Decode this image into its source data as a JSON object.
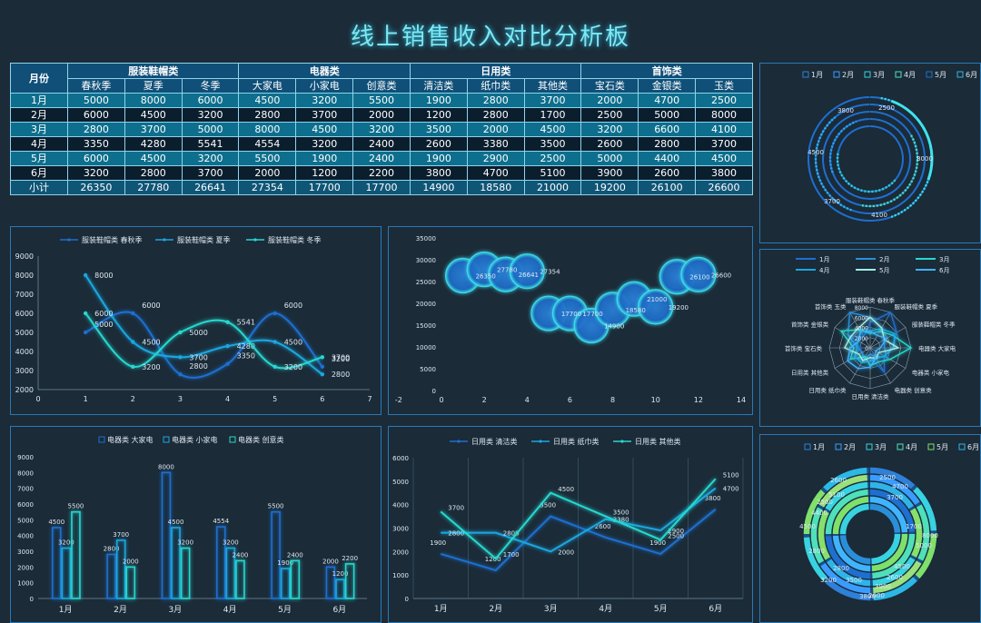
{
  "page": {
    "title": "线上销售收入对比分析板"
  },
  "table": {
    "month_header": "月份",
    "groups": [
      "服装鞋帽类",
      "电器类",
      "日用类",
      "首饰类"
    ],
    "columns": [
      "春秋季",
      "夏季",
      "冬季",
      "大家电",
      "小家电",
      "创意类",
      "清洁类",
      "纸巾类",
      "其他类",
      "宝石类",
      "金银类",
      "玉类"
    ],
    "rows": [
      {
        "month": "1月",
        "values": [
          5000,
          8000,
          6000,
          4500,
          3200,
          5500,
          1900,
          2800,
          3700,
          2000,
          4700,
          2500
        ]
      },
      {
        "month": "2月",
        "values": [
          6000,
          4500,
          3200,
          2800,
          3700,
          2000,
          1200,
          2800,
          1700,
          2500,
          5000,
          8000
        ]
      },
      {
        "month": "3月",
        "values": [
          2800,
          3700,
          5000,
          8000,
          4500,
          3200,
          3500,
          2000,
          4500,
          3200,
          6600,
          4100
        ]
      },
      {
        "month": "4月",
        "values": [
          3350,
          4280,
          5541,
          4554,
          3200,
          2400,
          2600,
          3380,
          3500,
          2600,
          2800,
          3700
        ]
      },
      {
        "month": "5月",
        "values": [
          6000,
          4500,
          3200,
          5500,
          1900,
          2400,
          1900,
          2900,
          2500,
          5000,
          4400,
          4500
        ]
      },
      {
        "month": "6月",
        "values": [
          3200,
          2800,
          3700,
          2000,
          1200,
          2200,
          3800,
          4700,
          5100,
          3900,
          2600,
          3800
        ]
      }
    ],
    "subtotal": {
      "label": "小计",
      "values": [
        26350,
        27780,
        26641,
        27354,
        17700,
        17700,
        14900,
        18580,
        21000,
        19200,
        26100,
        26600
      ]
    }
  },
  "chart_data": [
    {
      "id": "clothing-line",
      "type": "line",
      "series": [
        {
          "name": "服装鞋帽类 春秋季",
          "x": [
            1,
            2,
            3,
            4,
            5,
            6
          ],
          "values": [
            5000,
            6000,
            2800,
            3350,
            6000,
            3200
          ]
        },
        {
          "name": "服装鞋帽类 夏季",
          "x": [
            1,
            2,
            3,
            4,
            5,
            6
          ],
          "values": [
            8000,
            4500,
            3700,
            4280,
            4500,
            2800
          ]
        },
        {
          "name": "服装鞋帽类 冬季",
          "x": [
            1,
            2,
            3,
            4,
            5,
            6
          ],
          "values": [
            6000,
            3200,
            5000,
            5541,
            3200,
            3700
          ]
        }
      ],
      "xlim": [
        0,
        7
      ],
      "xticks": [
        0,
        1,
        2,
        3,
        4,
        5,
        6,
        7
      ],
      "ylim": [
        2000,
        9000
      ],
      "yticks": [
        2000,
        3000,
        4000,
        5000,
        6000,
        7000,
        8000,
        9000
      ],
      "legend": "top"
    },
    {
      "id": "subtotal-bubble",
      "type": "scatter",
      "points": [
        {
          "x": 1,
          "y": 26350
        },
        {
          "x": 2,
          "y": 27780
        },
        {
          "x": 3,
          "y": 26641
        },
        {
          "x": 4,
          "y": 27354
        },
        {
          "x": 5,
          "y": 17700
        },
        {
          "x": 6,
          "y": 17700
        },
        {
          "x": 7,
          "y": 14900
        },
        {
          "x": 8,
          "y": 18580
        },
        {
          "x": 9,
          "y": 21000
        },
        {
          "x": 10,
          "y": 19200
        },
        {
          "x": 11,
          "y": 26100
        },
        {
          "x": 12,
          "y": 26600
        }
      ],
      "xlim": [
        -2,
        14
      ],
      "xticks": [
        -2,
        0,
        2,
        4,
        6,
        8,
        10,
        12,
        14
      ],
      "ylim": [
        0,
        35000
      ],
      "yticks": [
        0,
        5000,
        10000,
        15000,
        20000,
        25000,
        30000,
        35000
      ]
    },
    {
      "id": "appliance-bar",
      "type": "bar",
      "categories": [
        "1月",
        "2月",
        "3月",
        "4月",
        "5月",
        "6月"
      ],
      "series": [
        {
          "name": "电器类 大家电",
          "values": [
            4500,
            2800,
            8000,
            4554,
            5500,
            2000
          ]
        },
        {
          "name": "电器类 小家电",
          "values": [
            3200,
            3700,
            4500,
            3200,
            1900,
            1200
          ]
        },
        {
          "name": "电器类 创意类",
          "values": [
            5500,
            2000,
            3200,
            2400,
            2400,
            2200
          ]
        }
      ],
      "ylim": [
        0,
        9000
      ],
      "yticks": [
        0,
        1000,
        2000,
        3000,
        4000,
        5000,
        6000,
        7000,
        8000,
        9000
      ],
      "legend": "top"
    },
    {
      "id": "daily-line",
      "type": "line",
      "categories": [
        "1月",
        "2月",
        "3月",
        "4月",
        "5月",
        "6月"
      ],
      "series": [
        {
          "name": "日用类 清洁类",
          "values": [
            1900,
            1200,
            3500,
            2600,
            1900,
            3800
          ]
        },
        {
          "name": "日用类 纸巾类",
          "values": [
            2800,
            2800,
            2000,
            3380,
            2900,
            4700
          ]
        },
        {
          "name": "日用类 其他类",
          "values": [
            3700,
            1700,
            4500,
            3500,
            2500,
            5100
          ]
        }
      ],
      "ylim": [
        0,
        6000
      ],
      "yticks": [
        0,
        1000,
        2000,
        3000,
        4000,
        5000,
        6000
      ],
      "legend": "top"
    },
    {
      "id": "jewelry-donut",
      "type": "pie",
      "legend": [
        "1月",
        "2月",
        "3月",
        "4月",
        "5月",
        "6月"
      ],
      "labels": [
        "2500",
        "8000",
        "4100",
        "3700",
        "4500",
        "3800"
      ]
    },
    {
      "id": "radar",
      "type": "radar",
      "legend": [
        "1月",
        "2月",
        "3月",
        "4月",
        "5月",
        "6月"
      ],
      "axes": [
        "服装鞋帽类 春秋季",
        "服装鞋帽类 夏季",
        "服装鞋帽类 冬季",
        "电器类 大家电",
        "电器类 小家电",
        "电器类 创意类",
        "日用类 清洁类",
        "日用类 纸巾类",
        "日用类 其他类",
        "首饰类 宝石类",
        "首饰类 金银类",
        "首饰类 玉类"
      ],
      "rlabels": [
        "0",
        "2000",
        "4000",
        "6000",
        "8000"
      ],
      "rmax": 8000
    },
    {
      "id": "multi-donut",
      "type": "pie",
      "legend": [
        "1月",
        "2月",
        "3月",
        "4月",
        "5月",
        "6月"
      ],
      "labels": [
        "2500",
        "4700",
        "3700",
        "1700",
        "8000",
        "5000",
        "4500",
        "2600",
        "2800",
        "3200",
        "3500",
        "3800",
        "4500",
        "4400",
        "2500",
        "2600",
        "5100",
        "3900",
        "2800",
        "2000"
      ]
    }
  ],
  "colors": {
    "s1": "#1e6fd0",
    "s2": "#1aa7e0",
    "s3": "#27d8cf",
    "title": "#7fe8ee",
    "border": "#2a79b5"
  }
}
